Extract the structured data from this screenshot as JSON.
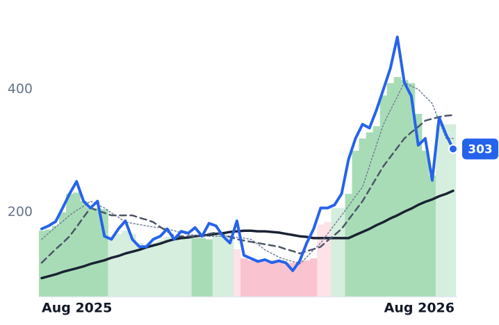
{
  "chart_data": {
    "type": "line",
    "categories": [
      "Aug 2025",
      null,
      null,
      null,
      null,
      null,
      null,
      null,
      null,
      null,
      null,
      null,
      null,
      null,
      null,
      null,
      null,
      null,
      null,
      null,
      null,
      null,
      null,
      null,
      null,
      null,
      null,
      null,
      null,
      null,
      null,
      null,
      null,
      null,
      null,
      null,
      null,
      null,
      null,
      null,
      null,
      null,
      null,
      null,
      null,
      null,
      null,
      null,
      null,
      null,
      null,
      null,
      null,
      null,
      null,
      null,
      null,
      null,
      null,
      "Aug 2026"
    ],
    "ylim": [
      63,
      500
    ],
    "yticks": [
      200,
      400
    ],
    "series": [
      {
        "type": "bar",
        "colors": [
          "#a8dcb6",
          "#a8dcb6",
          "#a8dcb6",
          "#a8dcb6",
          "#a8dcb6",
          "#a8dcb6",
          "#a8dcb6",
          "#a8dcb6",
          "#a8dcb6",
          "#a8dcb6",
          "#d5eedd",
          "#d5eedd",
          "#d5eedd",
          "#d5eedd",
          "#d5eedd",
          "#d5eedd",
          "#d5eedd",
          "#d5eedd",
          "#d5eedd",
          "#d5eedd",
          "#d5eedd",
          "#d5eedd",
          "#a8dcb6",
          "#a8dcb6",
          "#a8dcb6",
          "#d5eedd",
          "#d5eedd",
          "#d5eedd",
          "#fde2e8",
          "#f9c4cf",
          "#f9c4cf",
          "#f9c4cf",
          "#f9c4cf",
          "#f9c4cf",
          "#f9c4cf",
          "#f9c4cf",
          "#f9c4cf",
          "#f9c4cf",
          "#f9c4cf",
          "#f9c4cf",
          "#fde2e8",
          "#fde2e8",
          "#d5eedd",
          "#d5eedd",
          "#a8dcb6",
          "#a8dcb6",
          "#a8dcb6",
          "#a8dcb6",
          "#a8dcb6",
          "#a8dcb6",
          "#a8dcb6",
          "#a8dcb6",
          "#a8dcb6",
          "#a8dcb6",
          "#a8dcb6",
          "#a8dcb6",
          "#a8dcb6",
          "#d5eedd",
          "#d5eedd",
          "#d5eedd"
        ],
        "values": [
          170,
          172,
          178,
          200,
          230,
          232,
          218,
          207,
          207,
          205,
          160,
          165,
          170,
          165,
          150,
          145,
          150,
          155,
          160,
          158,
          160,
          162,
          158,
          158,
          156,
          165,
          165,
          160,
          140,
          125,
          122,
          122,
          120,
          122,
          120,
          118,
          118,
          120,
          122,
          125,
          180,
          184,
          207,
          207,
          230,
          300,
          320,
          330,
          340,
          390,
          410,
          420,
          415,
          410,
          360,
          300,
          260,
          343,
          343,
          343
        ]
      },
      {
        "type": "line",
        "color": "#1a2233",
        "width": 3.5,
        "dash": "none",
        "values": [
          93,
          96,
          99,
          103,
          106,
          109,
          112,
          116,
          119,
          122,
          126,
          129,
          133,
          136,
          139,
          143,
          146,
          149,
          153,
          156,
          158,
          159,
          161,
          162,
          163,
          165,
          166,
          168,
          169,
          170,
          170,
          169,
          169,
          168,
          167,
          165,
          163,
          161,
          160,
          158,
          158,
          158,
          158,
          158,
          158,
          163,
          168,
          173,
          179,
          184,
          190,
          195,
          201,
          206,
          212,
          217,
          221,
          226,
          230,
          235
        ]
      },
      {
        "type": "line",
        "color": "#718096",
        "width": 1.5,
        "dash": "2 3",
        "values": [
          156,
          166,
          176,
          185,
          195,
          203,
          210,
          218,
          212,
          207,
          199,
          192,
          184,
          182,
          180,
          178,
          176,
          175,
          173,
          170,
          167,
          164,
          163,
          162,
          161,
          161,
          161,
          161,
          159,
          158,
          156,
          148,
          139,
          133,
          127,
          123,
          120,
          116,
          127,
          139,
          150,
          165,
          180,
          195,
          210,
          226,
          241,
          275,
          309,
          343,
          366,
          388,
          411,
          405,
          400,
          388,
          377,
          348,
          320,
          320
        ]
      },
      {
        "type": "line",
        "color": "#4a5568",
        "width": 2.5,
        "dash": "9 6",
        "values": [
          118,
          129,
          140,
          150,
          161,
          176,
          192,
          207,
          203,
          199,
          195,
          195,
          195,
          195,
          191,
          188,
          184,
          176,
          169,
          161,
          161,
          161,
          161,
          163,
          165,
          167,
          163,
          160,
          156,
          154,
          152,
          150,
          148,
          146,
          144,
          140,
          137,
          133,
          137,
          140,
          144,
          154,
          163,
          173,
          188,
          203,
          218,
          237,
          256,
          275,
          290,
          305,
          320,
          330,
          339,
          349,
          352,
          355,
          357,
          358
        ]
      },
      {
        "type": "line",
        "color": "#2563eb",
        "width": 4,
        "dash": "none",
        "values": [
          173,
          178,
          185,
          207,
          230,
          250,
          218,
          207,
          218,
          161,
          156,
          173,
          186,
          156,
          144,
          144,
          156,
          161,
          173,
          156,
          169,
          166,
          175,
          161,
          182,
          178,
          161,
          150,
          186,
          130,
          125,
          120,
          123,
          118,
          121,
          118,
          105,
          121,
          150,
          173,
          207,
          207,
          212,
          230,
          286,
          320,
          343,
          337,
          366,
          400,
          434,
          485,
          411,
          389,
          309,
          320,
          252,
          354,
          326,
          303
        ]
      }
    ]
  }
}
